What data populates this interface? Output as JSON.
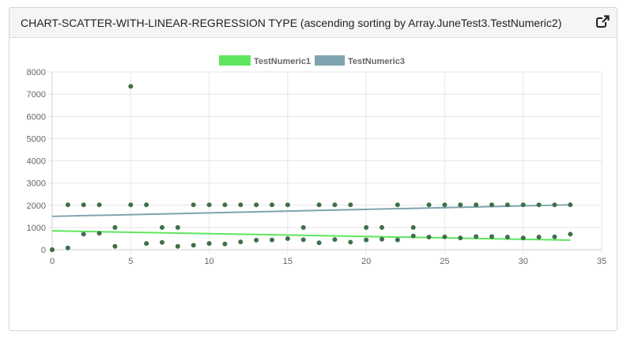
{
  "panel": {
    "title": "CHART-SCATTER-WITH-LINEAR-REGRESSION TYPE (ascending sorting by Array.JuneTest3.TestNumeric2)",
    "expand_icon": "external-link-icon"
  },
  "colors": {
    "series1": "#5ee65e",
    "series2": "#7ea4b0",
    "points": "#3f6f4a",
    "grid": "#e6e6e6",
    "axis_text": "#666666"
  },
  "chart_data": {
    "type": "scatter",
    "xlim": [
      0,
      35
    ],
    "ylim": [
      0,
      8000
    ],
    "x_ticks": [
      0,
      5,
      10,
      15,
      20,
      25,
      30,
      35
    ],
    "y_ticks": [
      0,
      1000,
      2000,
      3000,
      4000,
      5000,
      6000,
      7000,
      8000
    ],
    "grid": true,
    "legend_position": "top",
    "series": [
      {
        "name": "TestNumeric1",
        "points": [
          [
            0,
            0
          ],
          [
            1,
            80
          ],
          [
            2,
            700
          ],
          [
            3,
            740
          ],
          [
            4,
            150
          ],
          [
            5,
            7350
          ],
          [
            6,
            280
          ],
          [
            7,
            330
          ],
          [
            8,
            150
          ],
          [
            9,
            200
          ],
          [
            10,
            280
          ],
          [
            11,
            260
          ],
          [
            12,
            350
          ],
          [
            13,
            430
          ],
          [
            14,
            440
          ],
          [
            15,
            500
          ],
          [
            16,
            450
          ],
          [
            17,
            310
          ],
          [
            18,
            460
          ],
          [
            19,
            340
          ],
          [
            20,
            440
          ],
          [
            21,
            470
          ],
          [
            22,
            440
          ],
          [
            23,
            620
          ],
          [
            24,
            570
          ],
          [
            25,
            580
          ],
          [
            26,
            530
          ],
          [
            27,
            590
          ],
          [
            28,
            590
          ],
          [
            29,
            570
          ],
          [
            30,
            530
          ],
          [
            31,
            570
          ],
          [
            32,
            580
          ],
          [
            33,
            700
          ]
        ],
        "regression": [
          [
            0,
            850
          ],
          [
            33,
            430
          ]
        ]
      },
      {
        "name": "TestNumeric3",
        "points": [
          [
            0,
            0
          ],
          [
            1,
            2020
          ],
          [
            2,
            2020
          ],
          [
            3,
            2020
          ],
          [
            4,
            1000
          ],
          [
            5,
            2020
          ],
          [
            6,
            2020
          ],
          [
            7,
            1000
          ],
          [
            8,
            1000
          ],
          [
            9,
            2020
          ],
          [
            10,
            2020
          ],
          [
            11,
            2020
          ],
          [
            12,
            2020
          ],
          [
            13,
            2020
          ],
          [
            14,
            2020
          ],
          [
            15,
            2020
          ],
          [
            16,
            1000
          ],
          [
            17,
            2020
          ],
          [
            18,
            2020
          ],
          [
            19,
            2020
          ],
          [
            20,
            1000
          ],
          [
            21,
            1000
          ],
          [
            22,
            2020
          ],
          [
            23,
            1000
          ],
          [
            24,
            2020
          ],
          [
            25,
            2020
          ],
          [
            26,
            2020
          ],
          [
            27,
            2020
          ],
          [
            28,
            2020
          ],
          [
            29,
            2020
          ],
          [
            30,
            2020
          ],
          [
            31,
            2020
          ],
          [
            32,
            2020
          ],
          [
            33,
            2020
          ]
        ],
        "regression": [
          [
            0,
            1500
          ],
          [
            33,
            2020
          ]
        ]
      }
    ]
  }
}
